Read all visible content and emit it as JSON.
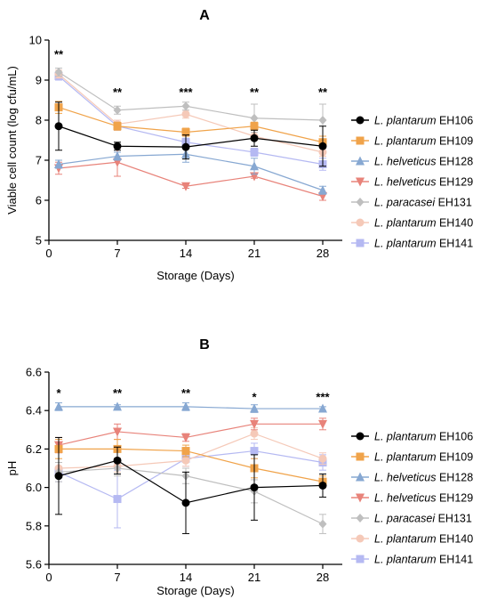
{
  "chart_data": [
    {
      "type": "line",
      "panel_label": "A",
      "xlabel": "Storage (Days)",
      "ylabel": "Viable cell count (log cfu/mL)",
      "xlim": [
        0,
        30
      ],
      "ylim": [
        5,
        10
      ],
      "x_ticks": [
        "0",
        "7",
        "14",
        "21",
        "28"
      ],
      "y_ticks": [
        "5",
        "6",
        "7",
        "8",
        "9",
        "10"
      ],
      "x": [
        1,
        7,
        14,
        21,
        28
      ],
      "grid": false,
      "legend_position": "right",
      "significance": [
        {
          "x": 1,
          "y": 9.55,
          "label": "**"
        },
        {
          "x": 7,
          "y": 8.6,
          "label": "**"
        },
        {
          "x": 14,
          "y": 8.6,
          "label": "***"
        },
        {
          "x": 21,
          "y": 8.6,
          "label": "**"
        },
        {
          "x": 28,
          "y": 8.6,
          "label": "**"
        }
      ],
      "series": [
        {
          "name": "L. plantarum EH106",
          "species": "L. plantarum",
          "strain": "EH106",
          "color": "#000000",
          "marker": "circle",
          "values": [
            7.85,
            7.35,
            7.33,
            7.55,
            7.35
          ],
          "errors": [
            0.6,
            0.1,
            0.3,
            0.2,
            0.5
          ]
        },
        {
          "name": "L. plantarum EH109",
          "species": "L. plantarum",
          "strain": "EH109",
          "color": "#f0a34a",
          "marker": "square",
          "values": [
            8.32,
            7.85,
            7.7,
            7.85,
            7.45
          ],
          "errors": [
            0.15,
            0.1,
            0.1,
            0.1,
            0.15
          ]
        },
        {
          "name": "L. helveticus EH128",
          "species": "L. helveticus",
          "strain": "EH128",
          "color": "#87a8d2",
          "marker": "triangle-up",
          "values": [
            6.9,
            7.1,
            7.15,
            6.85,
            6.25
          ],
          "errors": [
            0.1,
            0.1,
            0.2,
            0.2,
            0.1
          ]
        },
        {
          "name": "L. helveticus EH129",
          "species": "L. helveticus",
          "strain": "EH129",
          "color": "#e8837a",
          "marker": "triangle-down",
          "values": [
            6.8,
            6.95,
            6.35,
            6.6,
            6.1
          ],
          "errors": [
            0.15,
            0.35,
            0.05,
            0.05,
            0.1
          ]
        },
        {
          "name": "L. paracasei EH131",
          "species": "L. paracasei",
          "strain": "EH131",
          "color": "#bfbfbf",
          "marker": "diamond",
          "values": [
            9.2,
            8.25,
            8.35,
            8.05,
            8.0
          ],
          "errors": [
            0.1,
            0.1,
            0.1,
            0.35,
            0.4
          ]
        },
        {
          "name": "L. plantarum EH140",
          "species": "L. plantarum",
          "strain": "EH140",
          "color": "#f5c9b8",
          "marker": "circle",
          "values": [
            9.15,
            7.9,
            8.15,
            7.6,
            7.2
          ],
          "errors": [
            0.1,
            0.1,
            0.1,
            0.1,
            0.1
          ]
        },
        {
          "name": "L. plantarum EH141",
          "species": "L. plantarum",
          "strain": "EH141",
          "color": "#b5b9f2",
          "marker": "square",
          "values": [
            9.1,
            7.85,
            7.45,
            7.2,
            6.9
          ],
          "errors": [
            0.1,
            0.1,
            0.1,
            0.1,
            0.15
          ]
        }
      ]
    },
    {
      "type": "line",
      "panel_label": "B",
      "xlabel": "Storage (Days)",
      "ylabel": "pH",
      "xlim": [
        0,
        30
      ],
      "ylim": [
        5.6,
        6.6
      ],
      "x_ticks": [
        "0",
        "7",
        "14",
        "21",
        "28"
      ],
      "y_ticks": [
        "5.6",
        "5.8",
        "6.0",
        "6.2",
        "6.4",
        "6.6"
      ],
      "x": [
        1,
        7,
        14,
        21,
        28
      ],
      "grid": false,
      "legend_position": "right",
      "significance": [
        {
          "x": 1,
          "y": 6.47,
          "label": "*"
        },
        {
          "x": 7,
          "y": 6.47,
          "label": "**"
        },
        {
          "x": 14,
          "y": 6.47,
          "label": "**"
        },
        {
          "x": 21,
          "y": 6.45,
          "label": "*"
        },
        {
          "x": 28,
          "y": 6.45,
          "label": "***"
        }
      ],
      "series": [
        {
          "name": "L. plantarum EH106",
          "species": "L. plantarum",
          "strain": "EH106",
          "color": "#000000",
          "marker": "circle",
          "values": [
            6.06,
            6.14,
            5.92,
            6.0,
            6.01
          ],
          "errors": [
            0.2,
            0.07,
            0.16,
            0.17,
            0.06
          ]
        },
        {
          "name": "L. plantarum EH109",
          "species": "L. plantarum",
          "strain": "EH109",
          "color": "#f0a34a",
          "marker": "square",
          "values": [
            6.2,
            6.2,
            6.19,
            6.1,
            6.03
          ],
          "errors": [
            0.05,
            0.05,
            0.03,
            0.05,
            0.03
          ]
        },
        {
          "name": "L. helveticus EH128",
          "species": "L. helveticus",
          "strain": "EH128",
          "color": "#87a8d2",
          "marker": "triangle-up",
          "values": [
            6.42,
            6.42,
            6.42,
            6.41,
            6.41
          ],
          "errors": [
            0.02,
            0.01,
            0.02,
            0.02,
            0.01
          ]
        },
        {
          "name": "L. helveticus EH129",
          "species": "L. helveticus",
          "strain": "EH129",
          "color": "#e8837a",
          "marker": "triangle-down",
          "values": [
            6.22,
            6.29,
            6.26,
            6.33,
            6.33
          ],
          "errors": [
            0.04,
            0.04,
            0.02,
            0.03,
            0.03
          ]
        },
        {
          "name": "L. paracasei EH131",
          "species": "L. paracasei",
          "strain": "EH131",
          "color": "#bfbfbf",
          "marker": "diamond",
          "values": [
            6.08,
            6.1,
            6.06,
            5.98,
            5.81
          ],
          "errors": [
            0.05,
            0.04,
            0.04,
            0.06,
            0.05
          ]
        },
        {
          "name": "L. plantarum EH140",
          "species": "L. plantarum",
          "strain": "EH140",
          "color": "#f5c9b8",
          "marker": "circle",
          "values": [
            6.1,
            6.11,
            6.14,
            6.28,
            6.15
          ],
          "errors": [
            0.03,
            0.03,
            0.03,
            0.03,
            0.03
          ]
        },
        {
          "name": "L. plantarum EH141",
          "species": "L. plantarum",
          "strain": "EH141",
          "color": "#b5b9f2",
          "marker": "square",
          "values": [
            6.08,
            5.94,
            6.15,
            6.19,
            6.13
          ],
          "errors": [
            0.05,
            0.15,
            0.04,
            0.04,
            0.04
          ]
        }
      ]
    }
  ]
}
